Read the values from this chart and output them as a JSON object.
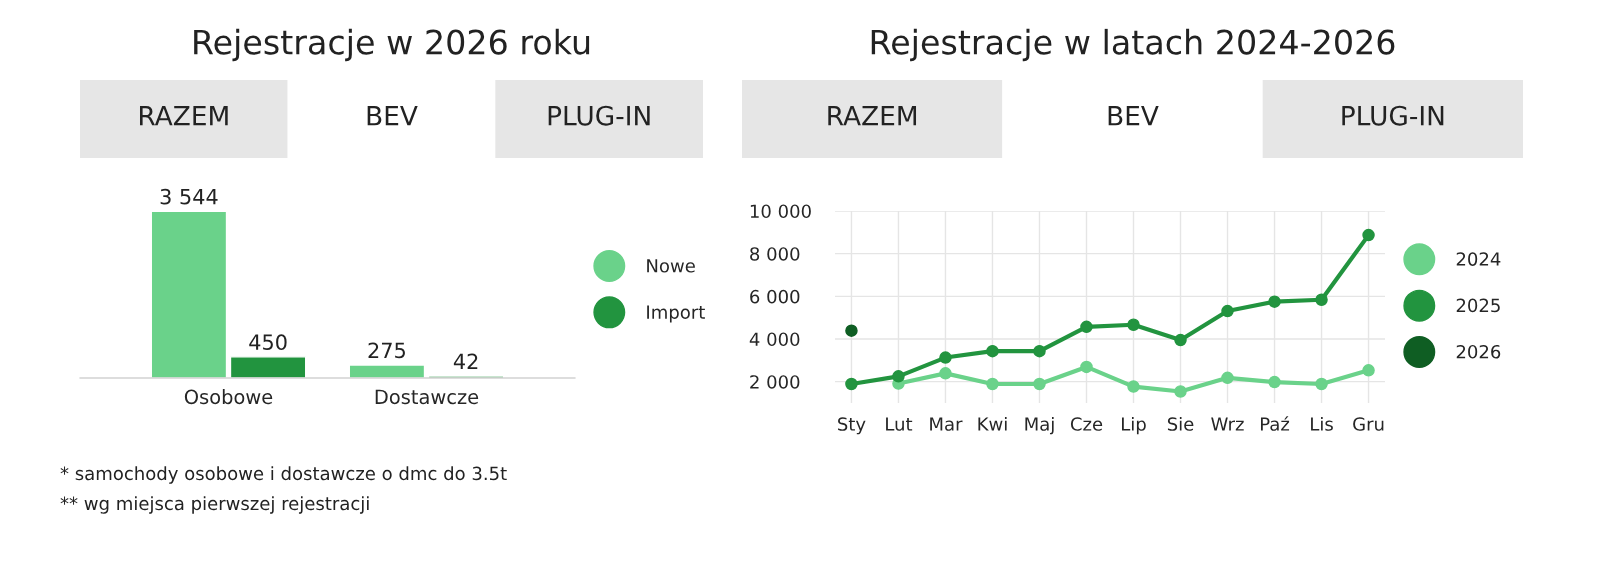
{
  "chart_data": [
    {
      "type": "bar",
      "title": "Rejestracje w 2026 roku",
      "categories": [
        "Osobowe",
        "Dostawcze"
      ],
      "series": [
        {
          "name": "Nowe",
          "color": "#6ad28a",
          "values": [
            3544,
            275
          ],
          "value_labels": [
            "3 544",
            "275"
          ]
        },
        {
          "name": "Import",
          "color": "#22943f",
          "values": [
            450,
            42
          ],
          "value_labels": [
            "450",
            "42"
          ]
        }
      ],
      "legend": "right",
      "grid": false,
      "annotations": [
        "RAZEM",
        "BEV",
        "PLUG-IN",
        "* samochody osobowe i dostawcze o dmc do 3.5t",
        "** wg miejsca pierwszej rejestracji"
      ]
    },
    {
      "type": "line",
      "title": "Rejestracje w latach 2024-2026",
      "categories": [
        "Sty",
        "Lut",
        "Mar",
        "Kwi",
        "Maj",
        "Cze",
        "Lip",
        "Sie",
        "Wrz",
        "Paź",
        "Lis",
        "Gru"
      ],
      "series": [
        {
          "name": "2024",
          "color": "#6ad28a",
          "values": [
            null,
            1910,
            2390,
            1890,
            1890,
            2690,
            1770,
            1540,
            2180,
            1980,
            1890,
            2530
          ]
        },
        {
          "name": "2025",
          "color": "#22943f",
          "values": [
            1890,
            2250,
            3130,
            3430,
            3430,
            4570,
            4670,
            3950,
            5310,
            5750,
            5840,
            8870
          ]
        },
        {
          "name": "2026",
          "color": "#0f5e23",
          "values": [
            4390,
            null,
            null,
            null,
            null,
            null,
            null,
            null,
            null,
            null,
            null,
            null
          ]
        }
      ],
      "ylim": [
        1000,
        10000
      ],
      "yticks": [
        {
          "value": 2000,
          "label": "2 000"
        },
        {
          "value": 4000,
          "label": "4 000"
        },
        {
          "value": 6000,
          "label": "6 000"
        },
        {
          "value": 8000,
          "label": "8 000"
        },
        {
          "value": 10000,
          "label": "10 000"
        }
      ],
      "grid": true,
      "legend": "right",
      "marker": "circle",
      "line_style": "solid",
      "annotations": [
        "RAZEM",
        "BEV",
        "PLUG-IN"
      ]
    }
  ]
}
